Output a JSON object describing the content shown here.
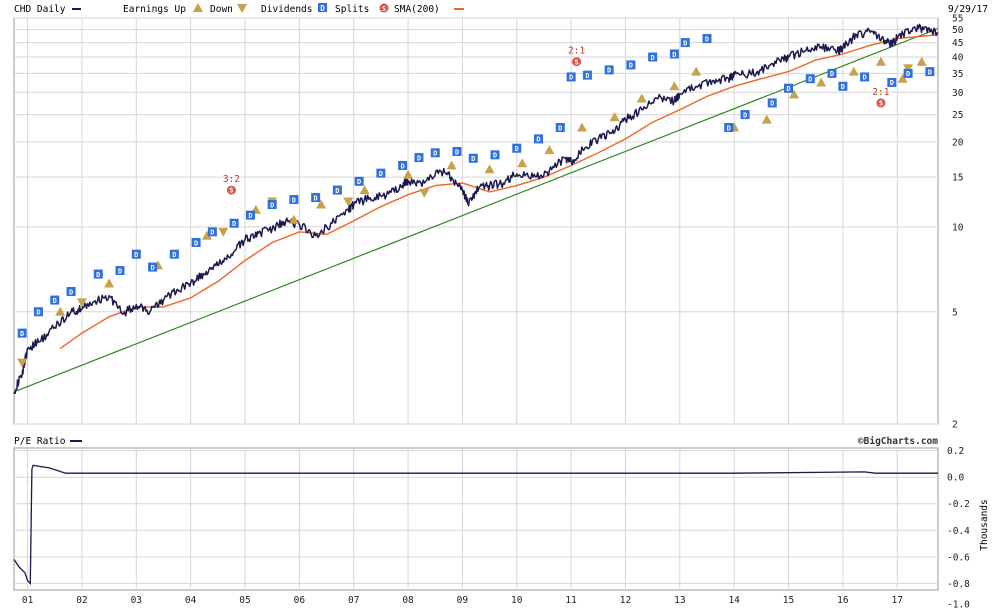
{
  "header": {
    "symbol_label": "CHD Daily",
    "earnings_label": "Earnings Up",
    "down_label": "Down",
    "dividends_label": "Dividends",
    "dividend_glyph": "D",
    "splits_label": "Splits",
    "split_glyph": "S",
    "sma_label": "SMA(200)",
    "date_label": "9/29/17"
  },
  "lower_panel": {
    "title": "P/E Ratio",
    "credit": "©BigCharts.com",
    "axis_unit": "Thousands"
  },
  "colors": {
    "price": "#1a1a4e",
    "sma": "#f26522",
    "trend": "#2e8b1f",
    "earnings": "#c8a24a",
    "dividend": "#2f6fe0",
    "split": "#d9534f",
    "grid": "#d6d6d6"
  },
  "split_annotations": [
    {
      "label": "3:2",
      "year": 2004.75,
      "price": 13.5
    },
    {
      "label": "2:1",
      "year": 2011.1,
      "price": 38.5
    },
    {
      "label": "2:1",
      "year": 2016.7,
      "price": 27.5
    }
  ],
  "chart_data": [
    {
      "type": "line",
      "name": "price",
      "y_scale": "log",
      "ylim": [
        2,
        55
      ],
      "y_ticks": [
        2,
        5,
        10,
        15,
        20,
        25,
        30,
        35,
        40,
        45,
        50,
        55
      ],
      "x_ticks": [
        "01",
        "02",
        "03",
        "04",
        "05",
        "06",
        "07",
        "08",
        "09",
        "10",
        "11",
        "12",
        "13",
        "14",
        "15",
        "16",
        "17"
      ],
      "x_tick_years": [
        2001,
        2002,
        2003,
        2004,
        2005,
        2006,
        2007,
        2008,
        2009,
        2010,
        2011,
        2012,
        2013,
        2014,
        2015,
        2016,
        2017
      ],
      "xlim": [
        2000.75,
        2017.75
      ],
      "series": [
        {
          "name": "CHD Daily",
          "x": [
            2000.75,
            2000.9,
            2001.0,
            2001.2,
            2001.5,
            2001.8,
            2002.0,
            2002.2,
            2002.5,
            2002.75,
            2003.0,
            2003.25,
            2003.5,
            2003.75,
            2004.0,
            2004.25,
            2004.5,
            2004.75,
            2005.0,
            2005.25,
            2005.5,
            2005.75,
            2006.0,
            2006.3,
            2006.6,
            2006.9,
            2007.0,
            2007.3,
            2007.6,
            2007.9,
            2008.0,
            2008.3,
            2008.6,
            2008.8,
            2009.0,
            2009.1,
            2009.3,
            2009.5,
            2009.75,
            2010.0,
            2010.3,
            2010.6,
            2010.9,
            2011.0,
            2011.25,
            2011.5,
            2011.75,
            2012.0,
            2012.3,
            2012.6,
            2012.9,
            2013.0,
            2013.3,
            2013.6,
            2013.9,
            2014.0,
            2014.3,
            2014.6,
            2014.9,
            2015.0,
            2015.3,
            2015.6,
            2015.9,
            2016.0,
            2016.25,
            2016.5,
            2016.75,
            2016.9,
            2017.0,
            2017.25,
            2017.5,
            2017.75
          ],
          "values": [
            2.6,
            3.0,
            3.7,
            3.9,
            4.4,
            5.0,
            5.1,
            5.4,
            5.7,
            4.9,
            5.3,
            5.0,
            5.5,
            6.0,
            6.3,
            6.8,
            7.3,
            8.0,
            9.0,
            9.5,
            9.8,
            10.5,
            10.2,
            9.3,
            10.3,
            11.5,
            12.0,
            12.7,
            12.9,
            14.0,
            14.6,
            14.3,
            15.8,
            15.0,
            13.5,
            12.1,
            13.7,
            14.0,
            14.3,
            15.4,
            15.0,
            15.8,
            17.5,
            17.0,
            19.0,
            20.5,
            21.5,
            24.0,
            26.0,
            28.5,
            28.0,
            29.5,
            31.5,
            33.0,
            33.5,
            34.5,
            35.0,
            36.5,
            39.5,
            40.0,
            42.0,
            43.5,
            42.0,
            43.0,
            48.0,
            49.0,
            46.0,
            44.0,
            47.0,
            49.5,
            51.0,
            48.5
          ]
        },
        {
          "name": "SMA(200)",
          "x": [
            2001.6,
            2002.0,
            2002.5,
            2003.0,
            2003.5,
            2004.0,
            2004.5,
            2005.0,
            2005.5,
            2006.0,
            2006.5,
            2007.0,
            2007.5,
            2008.0,
            2008.5,
            2009.0,
            2009.5,
            2010.0,
            2010.5,
            2011.0,
            2011.5,
            2012.0,
            2012.5,
            2013.0,
            2013.5,
            2014.0,
            2014.5,
            2015.0,
            2015.5,
            2016.0,
            2016.5,
            2017.0,
            2017.5,
            2017.75
          ],
          "values": [
            3.7,
            4.2,
            4.8,
            5.2,
            5.2,
            5.6,
            6.4,
            7.6,
            8.8,
            9.6,
            9.4,
            10.5,
            11.8,
            13.0,
            14.0,
            14.3,
            13.3,
            14.0,
            15.0,
            16.5,
            18.3,
            20.5,
            23.5,
            26.0,
            29.0,
            31.5,
            33.5,
            35.5,
            39.0,
            41.0,
            44.0,
            46.5,
            47.5,
            48.0
          ]
        },
        {
          "name": "Trend",
          "x": [
            2000.75,
            2017.75
          ],
          "values": [
            2.6,
            50.5
          ]
        }
      ],
      "earnings_up": [
        [
          2001.6,
          5.0
        ],
        [
          2002.5,
          6.3
        ],
        [
          2003.4,
          7.3
        ],
        [
          2004.3,
          9.3
        ],
        [
          2005.2,
          11.5
        ],
        [
          2005.9,
          10.6
        ],
        [
          2006.4,
          12.0
        ],
        [
          2007.2,
          13.5
        ],
        [
          2008.0,
          15.3
        ],
        [
          2008.8,
          16.5
        ],
        [
          2009.5,
          16.0
        ],
        [
          2010.1,
          16.8
        ],
        [
          2010.6,
          18.7
        ],
        [
          2011.2,
          22.5
        ],
        [
          2011.8,
          24.5
        ],
        [
          2012.3,
          28.5
        ],
        [
          2012.9,
          31.5
        ],
        [
          2013.3,
          35.5
        ],
        [
          2014.0,
          22.5
        ],
        [
          2014.6,
          24.0
        ],
        [
          2015.1,
          29.5
        ],
        [
          2015.6,
          32.5
        ],
        [
          2016.2,
          35.5
        ],
        [
          2016.7,
          38.5
        ],
        [
          2017.1,
          33.5
        ],
        [
          2017.45,
          38.5
        ]
      ],
      "earnings_down": [
        [
          2000.9,
          3.3
        ],
        [
          2002.0,
          5.4
        ],
        [
          2004.6,
          9.6
        ],
        [
          2005.5,
          12.3
        ],
        [
          2006.9,
          12.3
        ],
        [
          2008.3,
          13.2
        ],
        [
          2017.2,
          36.5
        ]
      ],
      "dividends": [
        [
          2000.9,
          4.2
        ],
        [
          2001.2,
          5.0
        ],
        [
          2001.5,
          5.5
        ],
        [
          2001.8,
          5.9
        ],
        [
          2002.3,
          6.8
        ],
        [
          2002.7,
          7.0
        ],
        [
          2003.0,
          8.0
        ],
        [
          2003.3,
          7.2
        ],
        [
          2003.7,
          8.0
        ],
        [
          2004.1,
          8.8
        ],
        [
          2004.4,
          9.6
        ],
        [
          2004.8,
          10.3
        ],
        [
          2005.1,
          11.0
        ],
        [
          2005.5,
          12.0
        ],
        [
          2005.9,
          12.5
        ],
        [
          2006.3,
          12.7
        ],
        [
          2006.7,
          13.5
        ],
        [
          2007.1,
          14.5
        ],
        [
          2007.5,
          15.5
        ],
        [
          2007.9,
          16.5
        ],
        [
          2008.2,
          17.6
        ],
        [
          2008.5,
          18.3
        ],
        [
          2008.9,
          18.5
        ],
        [
          2009.2,
          17.5
        ],
        [
          2009.6,
          18.0
        ],
        [
          2010.0,
          19.0
        ],
        [
          2010.4,
          20.5
        ],
        [
          2010.8,
          22.5
        ],
        [
          2011.0,
          34.0
        ],
        [
          2011.3,
          34.5
        ],
        [
          2011.7,
          36.0
        ],
        [
          2012.1,
          37.5
        ],
        [
          2012.5,
          40.0
        ],
        [
          2012.9,
          41.0
        ],
        [
          2013.1,
          45.0
        ],
        [
          2013.5,
          46.5
        ],
        [
          2013.9,
          22.5
        ],
        [
          2014.2,
          25.0
        ],
        [
          2014.7,
          27.5
        ],
        [
          2015.0,
          31.0
        ],
        [
          2015.4,
          33.5
        ],
        [
          2015.8,
          35.0
        ],
        [
          2016.0,
          31.5
        ],
        [
          2016.4,
          34.0
        ],
        [
          2016.9,
          32.5
        ],
        [
          2017.2,
          35.0
        ],
        [
          2017.6,
          35.5
        ]
      ],
      "x_axis_label": "",
      "y_axis_label": ""
    },
    {
      "type": "line",
      "name": "pe_ratio",
      "ylim": [
        -0.85,
        0.22
      ],
      "y_ticks": [
        0.2,
        0.0,
        -0.2,
        -0.4,
        -0.6,
        -0.8
      ],
      "y_tick_labels": [
        "0.2",
        "0.0",
        "-0.2",
        "-0.4",
        "-0.6",
        "-0.8",
        "-1.0"
      ],
      "y_tick_label_values": [
        0.2,
        0.0,
        -0.2,
        -0.4,
        -0.6,
        -0.8,
        -1.0
      ],
      "xlim": [
        2000.75,
        2017.75
      ],
      "ylabel": "Thousands",
      "series": [
        {
          "name": "P/E Ratio",
          "x": [
            2000.75,
            2000.85,
            2000.95,
            2001.0,
            2001.05,
            2001.08,
            2001.1,
            2001.4,
            2001.7,
            2002.0,
            2005.0,
            2008.0,
            2011.0,
            2014.0,
            2016.4,
            2016.6,
            2016.8,
            2017.75
          ],
          "values": [
            -0.62,
            -0.68,
            -0.72,
            -0.78,
            -0.8,
            0.06,
            0.09,
            0.07,
            0.03,
            0.03,
            0.03,
            0.03,
            0.03,
            0.03,
            0.04,
            0.03,
            0.03,
            0.03
          ]
        }
      ]
    }
  ]
}
